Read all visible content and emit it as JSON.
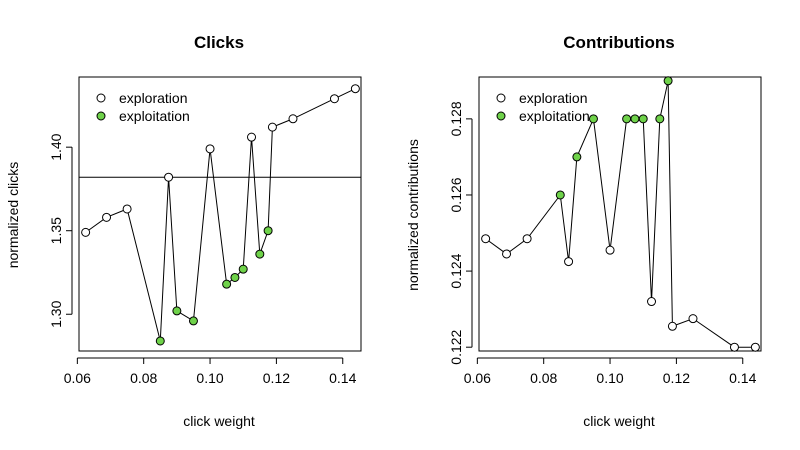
{
  "colors": {
    "exploration": "#ffffff",
    "exploitation": "#6fd24a",
    "stroke": "#000000"
  },
  "chart_data": [
    {
      "type": "line",
      "title": "Clicks",
      "xlabel": "click weight",
      "ylabel": "normalized clicks",
      "xlim": [
        0.0605,
        0.1455
      ],
      "ylim": [
        1.278,
        1.442
      ],
      "xticks": [
        0.06,
        0.08,
        0.1,
        0.12,
        0.14
      ],
      "xtick_labels": [
        "0.06",
        "0.08",
        "0.10",
        "0.12",
        "0.14"
      ],
      "yticks": [
        1.3,
        1.35,
        1.4
      ],
      "ytick_labels": [
        "1.30",
        "1.35",
        "1.40"
      ],
      "hline": 1.382,
      "legend": {
        "position": "top-left",
        "entries": [
          "exploration",
          "exploitation"
        ]
      },
      "points": [
        {
          "x": 0.0625,
          "y": 1.349,
          "kind": "exploration"
        },
        {
          "x": 0.0688,
          "y": 1.358,
          "kind": "exploration"
        },
        {
          "x": 0.075,
          "y": 1.363,
          "kind": "exploration"
        },
        {
          "x": 0.085,
          "y": 1.284,
          "kind": "exploitation"
        },
        {
          "x": 0.0875,
          "y": 1.382,
          "kind": "exploration"
        },
        {
          "x": 0.09,
          "y": 1.302,
          "kind": "exploitation"
        },
        {
          "x": 0.095,
          "y": 1.296,
          "kind": "exploitation"
        },
        {
          "x": 0.1,
          "y": 1.399,
          "kind": "exploration"
        },
        {
          "x": 0.105,
          "y": 1.318,
          "kind": "exploitation"
        },
        {
          "x": 0.1075,
          "y": 1.322,
          "kind": "exploitation"
        },
        {
          "x": 0.11,
          "y": 1.327,
          "kind": "exploitation"
        },
        {
          "x": 0.1125,
          "y": 1.406,
          "kind": "exploration"
        },
        {
          "x": 0.115,
          "y": 1.336,
          "kind": "exploitation"
        },
        {
          "x": 0.1175,
          "y": 1.35,
          "kind": "exploitation"
        },
        {
          "x": 0.1188,
          "y": 1.412,
          "kind": "exploration"
        },
        {
          "x": 0.125,
          "y": 1.417,
          "kind": "exploration"
        },
        {
          "x": 0.1375,
          "y": 1.429,
          "kind": "exploration"
        },
        {
          "x": 0.1438,
          "y": 1.435,
          "kind": "exploration"
        }
      ]
    },
    {
      "type": "line",
      "title": "Contributions",
      "xlabel": "click weight",
      "ylabel": "normalized contributions",
      "xlim": [
        0.0605,
        0.1455
      ],
      "ylim": [
        0.1219,
        0.1291
      ],
      "xticks": [
        0.06,
        0.08,
        0.1,
        0.12,
        0.14
      ],
      "xtick_labels": [
        "0.06",
        "0.08",
        "0.10",
        "0.12",
        "0.14"
      ],
      "yticks": [
        0.122,
        0.124,
        0.126,
        0.128
      ],
      "ytick_labels": [
        "0.122",
        "0.124",
        "0.126",
        "0.128"
      ],
      "legend": {
        "position": "top-left",
        "entries": [
          "exploration",
          "exploitation"
        ]
      },
      "points": [
        {
          "x": 0.0625,
          "y": 0.12485,
          "kind": "exploration"
        },
        {
          "x": 0.0688,
          "y": 0.12445,
          "kind": "exploration"
        },
        {
          "x": 0.075,
          "y": 0.12485,
          "kind": "exploration"
        },
        {
          "x": 0.085,
          "y": 0.126,
          "kind": "exploitation"
        },
        {
          "x": 0.0875,
          "y": 0.12425,
          "kind": "exploration"
        },
        {
          "x": 0.09,
          "y": 0.127,
          "kind": "exploitation"
        },
        {
          "x": 0.095,
          "y": 0.128,
          "kind": "exploitation"
        },
        {
          "x": 0.1,
          "y": 0.12455,
          "kind": "exploration"
        },
        {
          "x": 0.105,
          "y": 0.128,
          "kind": "exploitation"
        },
        {
          "x": 0.1075,
          "y": 0.128,
          "kind": "exploitation"
        },
        {
          "x": 0.11,
          "y": 0.128,
          "kind": "exploitation"
        },
        {
          "x": 0.1125,
          "y": 0.1232,
          "kind": "exploration"
        },
        {
          "x": 0.115,
          "y": 0.128,
          "kind": "exploitation"
        },
        {
          "x": 0.1175,
          "y": 0.129,
          "kind": "exploitation"
        },
        {
          "x": 0.1188,
          "y": 0.12255,
          "kind": "exploration"
        },
        {
          "x": 0.125,
          "y": 0.12275,
          "kind": "exploration"
        },
        {
          "x": 0.1375,
          "y": 0.122,
          "kind": "exploration"
        },
        {
          "x": 0.1438,
          "y": 0.122,
          "kind": "exploration"
        }
      ]
    }
  ]
}
